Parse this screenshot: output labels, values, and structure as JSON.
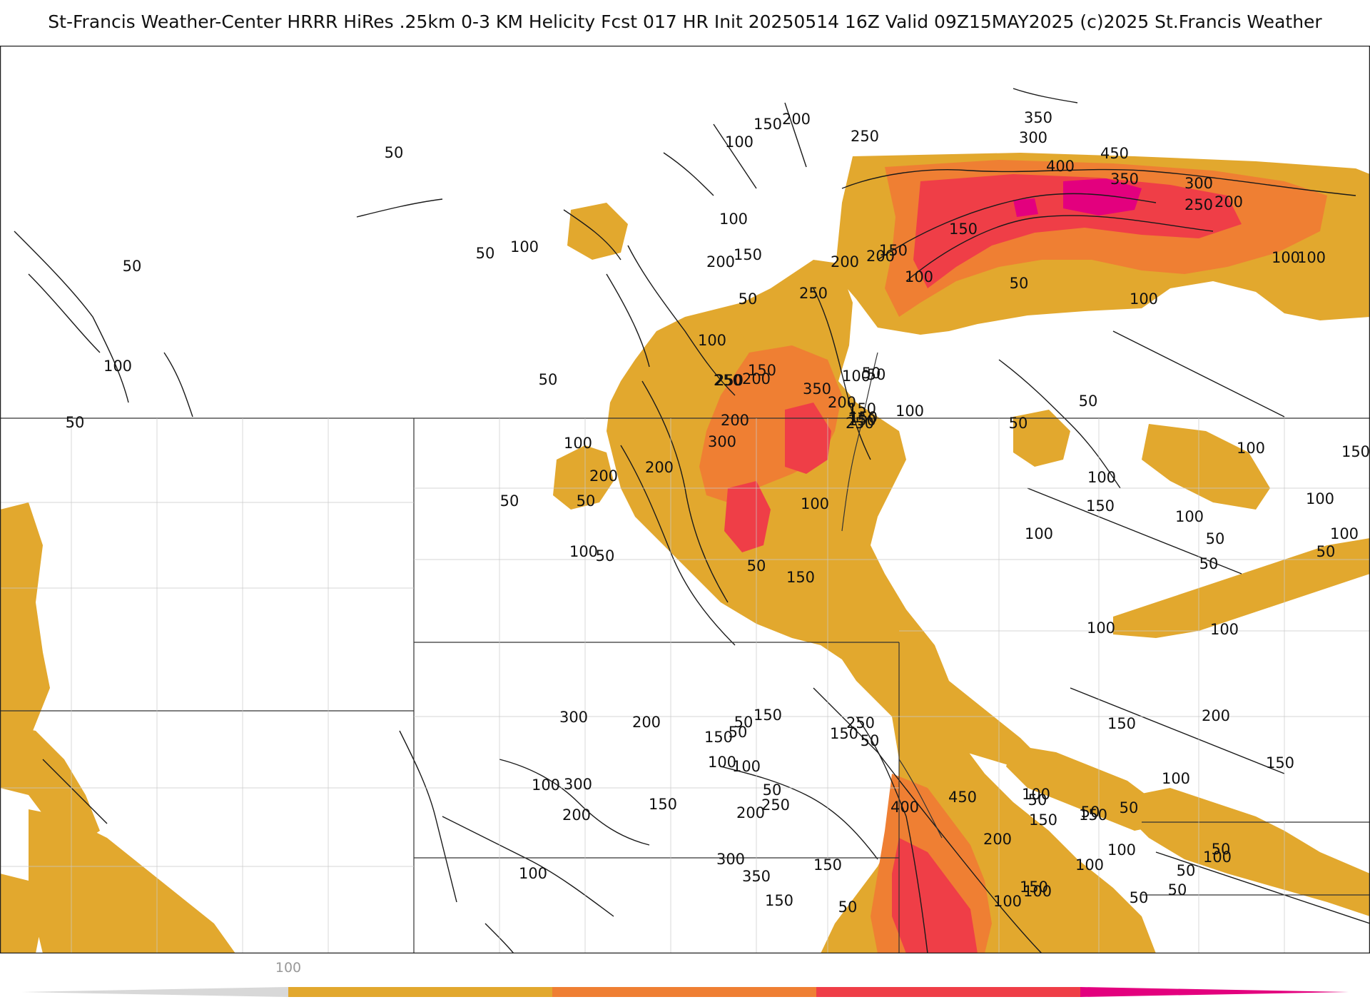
{
  "title": "St-Francis Weather-Center HRRR HiRes .25km 0-3 KM Helicity Fcst 017 HR Init 20250514 16Z  Valid 09Z15MAY2025    (c)2025 St.Francis Weather",
  "colors": {
    "bin_100": "#e2a82e",
    "bin_200": "#ef7f33",
    "bin_300": "#ef3e47",
    "bin_400": "#e3007e",
    "contour": "#1a1a1a",
    "border": "#333333",
    "county": "#c9c9c9"
  },
  "legend": {
    "ticks": [
      "100"
    ]
  },
  "contour_labels": {
    "values": [
      "50",
      "100",
      "150",
      "200",
      "250",
      "300",
      "350",
      "400",
      "450"
    ],
    "list": [
      "350",
      "300",
      "450",
      "400",
      "350",
      "300",
      "250",
      "200",
      "250",
      "200",
      "150",
      "100",
      "200",
      "150",
      "100",
      "50",
      "100",
      "100",
      "150",
      "200",
      "250",
      "200",
      "150",
      "100",
      "50",
      "100",
      "50",
      "100",
      "50",
      "50",
      "100",
      "50",
      "100",
      "150",
      "200",
      "250",
      "200",
      "100",
      "50",
      "150",
      "250",
      "350",
      "250",
      "50",
      "150",
      "100",
      "50",
      "300",
      "200",
      "200",
      "150",
      "200",
      "100",
      "150",
      "50",
      "100",
      "50",
      "50",
      "50",
      "100",
      "50",
      "100",
      "50",
      "100",
      "100",
      "50",
      "100",
      "150",
      "100",
      "50",
      "100",
      "150",
      "50",
      "100",
      "100",
      "150",
      "200",
      "150",
      "100",
      "50",
      "100",
      "50",
      "50",
      "300",
      "200",
      "150",
      "250",
      "50",
      "150",
      "50",
      "150",
      "100",
      "50",
      "100",
      "300",
      "200",
      "150",
      "50",
      "100",
      "200",
      "250",
      "100",
      "300",
      "350",
      "400",
      "450",
      "200",
      "150",
      "100",
      "150",
      "150",
      "100",
      "100",
      "50",
      "100",
      "50",
      "50",
      "50",
      "100",
      "150",
      "50",
      "150"
    ]
  }
}
